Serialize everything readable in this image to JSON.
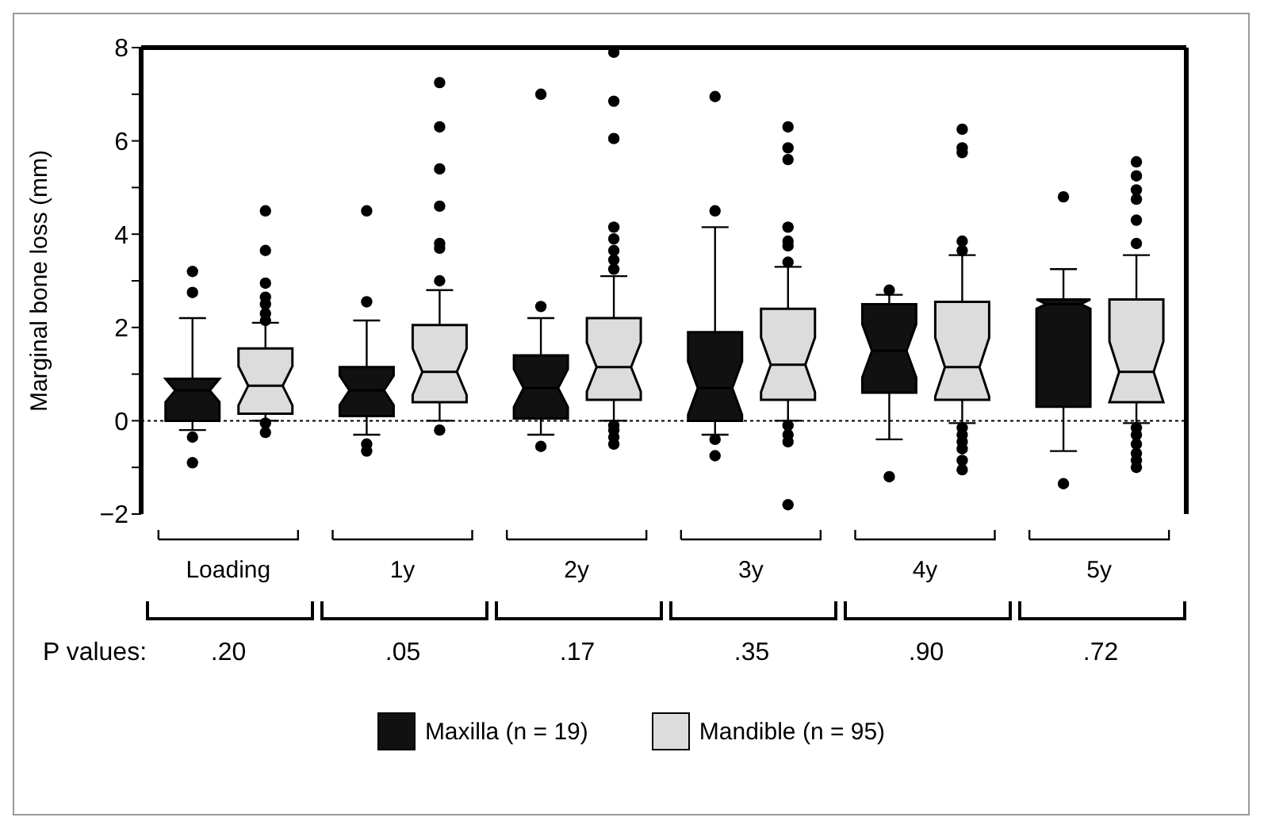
{
  "chart_data": {
    "type": "box",
    "ylabel": "Marginal bone loss (mm)",
    "categories": [
      "Loading",
      "1y",
      "2y",
      "3y",
      "4y",
      "5y"
    ],
    "ylim": [
      -2,
      8
    ],
    "yticks": [
      -2,
      {
        "value": -1,
        "label": null
      },
      0,
      {
        "value": 1,
        "label": null
      },
      2,
      {
        "value": 3,
        "label": null
      },
      4,
      {
        "value": 5,
        "label": null
      },
      6,
      {
        "value": 7,
        "label": null
      },
      8
    ],
    "legend": "bottom",
    "marker": "circle",
    "ref_lines": [
      {
        "axis": "y",
        "value": 0,
        "line_style": "dotted",
        "color": "#000000"
      }
    ],
    "annotations": [
      "P values:",
      ".20",
      ".05",
      ".17",
      ".35",
      ".90",
      ".72"
    ],
    "series": [
      {
        "name": "Maxilla (n = 19)",
        "color": "#111111",
        "boxes": [
          {
            "low": -0.2,
            "q1": 0,
            "median": 0.65,
            "q3": 0.9,
            "high": 2.2,
            "outliers": [
              3.2,
              2.75,
              -0.35,
              -0.9
            ]
          },
          {
            "low": -0.3,
            "q1": 0.1,
            "median": 0.65,
            "q3": 1.15,
            "high": 2.15,
            "outliers": [
              4.5,
              2.55,
              -0.5,
              -0.65
            ]
          },
          {
            "low": -0.3,
            "q1": 0.05,
            "median": 0.7,
            "q3": 1.4,
            "high": 2.2,
            "outliers": [
              7,
              2.45,
              -0.55
            ]
          },
          {
            "low": -0.3,
            "q1": 0,
            "median": 0.7,
            "q3": 1.9,
            "high": 4.15,
            "outliers": [
              6.95,
              4.5,
              -0.4,
              -0.75
            ]
          },
          {
            "low": -0.4,
            "q1": 0.6,
            "median": 1.5,
            "q3": 2.5,
            "high": 2.7,
            "outliers": [
              2.8,
              -1.2
            ]
          },
          {
            "low": -0.65,
            "q1": 0.3,
            "median": 2.5,
            "q3": 2.6,
            "high": 3.25,
            "outliers": [
              4.8,
              -1.35
            ]
          }
        ]
      },
      {
        "name": "Mandible (n = 95)",
        "color": "#dcdcdc",
        "boxes": [
          {
            "low": 0,
            "q1": 0.15,
            "median": 0.75,
            "q3": 1.55,
            "high": 2.1,
            "outliers": [
              4.5,
              3.65,
              2.95,
              2.65,
              2.5,
              2.3,
              2.15,
              -0.05,
              -0.25
            ]
          },
          {
            "low": 0,
            "q1": 0.4,
            "median": 1.05,
            "q3": 2.05,
            "high": 2.8,
            "outliers": [
              7.25,
              6.3,
              5.4,
              4.6,
              3.8,
              3.7,
              3,
              -0.2
            ]
          },
          {
            "low": 0,
            "q1": 0.45,
            "median": 1.15,
            "q3": 2.2,
            "high": 3.1,
            "outliers": [
              7.9,
              6.85,
              6.05,
              4.15,
              3.9,
              3.65,
              3.45,
              3.25,
              -0.1,
              -0.2,
              -0.35,
              -0.5
            ]
          },
          {
            "low": 0,
            "q1": 0.45,
            "median": 1.2,
            "q3": 2.4,
            "high": 3.3,
            "outliers": [
              6.3,
              5.85,
              5.6,
              4.15,
              3.85,
              3.75,
              3.4,
              -0.1,
              -0.3,
              -0.45,
              -1.8
            ]
          },
          {
            "low": -0.05,
            "q1": 0.45,
            "median": 1.15,
            "q3": 2.55,
            "high": 3.55,
            "outliers": [
              6.25,
              5.85,
              5.75,
              3.85,
              3.65,
              -0.15,
              -0.3,
              -0.45,
              -0.6,
              -0.85,
              -1.05
            ]
          },
          {
            "low": -0.05,
            "q1": 0.4,
            "median": 1.05,
            "q3": 2.6,
            "high": 3.55,
            "outliers": [
              5.55,
              5.25,
              4.95,
              4.75,
              4.3,
              3.8,
              -0.15,
              -0.3,
              -0.5,
              -0.7,
              -0.85,
              -1
            ]
          }
        ]
      }
    ]
  }
}
